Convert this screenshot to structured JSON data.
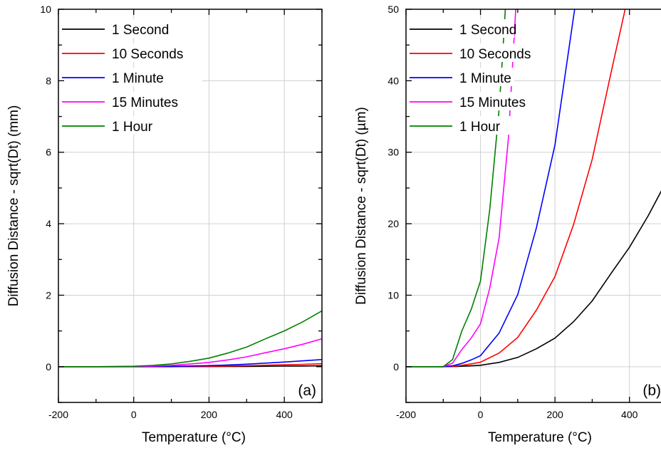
{
  "chart_data": [
    {
      "type": "line",
      "panel_label": "(a)",
      "xlabel": "Temperature (°C)",
      "ylabel": "Diffusion Distance - sqrt(Dt) (mm)",
      "xlim": [
        -200,
        500
      ],
      "ylim": [
        -1,
        10
      ],
      "xticks": [
        -200,
        0,
        200,
        400
      ],
      "yticks": [
        0,
        2,
        4,
        6,
        8,
        10
      ],
      "grid": true,
      "legend_position": "top-left",
      "series": [
        {
          "name": "1 Second",
          "color": "#000000",
          "x": [
            -200,
            -100,
            -50,
            0,
            50,
            100,
            150,
            200,
            250,
            300,
            350,
            400,
            450,
            500
          ],
          "y": [
            0,
            0,
            0,
            0.0002,
            0.0006,
            0.0013,
            0.0025,
            0.004,
            0.0063,
            0.0092,
            0.013,
            0.0167,
            0.0211,
            0.026
          ]
        },
        {
          "name": "10 Seconds",
          "color": "#ff0000",
          "x": [
            -200,
            -100,
            -50,
            0,
            50,
            100,
            150,
            200,
            250,
            300,
            350,
            400,
            450,
            500
          ],
          "y": [
            0,
            0,
            0.0003,
            0.0006,
            0.0019,
            0.0041,
            0.0079,
            0.0126,
            0.0199,
            0.029,
            0.041,
            0.0527,
            0.0668,
            0.082
          ]
        },
        {
          "name": "1 Minute",
          "color": "#0000ff",
          "x": [
            -200,
            -100,
            -50,
            0,
            50,
            100,
            150,
            200,
            250,
            300,
            350,
            400,
            450,
            500
          ],
          "y": [
            0,
            0,
            0.0006,
            0.0015,
            0.0047,
            0.0101,
            0.0194,
            0.031,
            0.049,
            0.071,
            0.1,
            0.129,
            0.164,
            0.2
          ]
        },
        {
          "name": "15 Minutes",
          "color": "#ff00ff",
          "x": [
            -200,
            -100,
            -50,
            0,
            50,
            100,
            150,
            200,
            250,
            300,
            350,
            400,
            450,
            500
          ],
          "y": [
            0,
            0.0003,
            0.0024,
            0.006,
            0.018,
            0.039,
            0.075,
            0.12,
            0.19,
            0.275,
            0.39,
            0.5,
            0.63,
            0.78
          ]
        },
        {
          "name": "1 Hour",
          "color": "#008000",
          "x": [
            -200,
            -100,
            -50,
            0,
            50,
            100,
            150,
            200,
            250,
            300,
            350,
            400,
            450,
            500
          ],
          "y": [
            0,
            0.0006,
            0.005,
            0.012,
            0.036,
            0.078,
            0.15,
            0.24,
            0.38,
            0.55,
            0.78,
            1.0,
            1.26,
            1.56
          ]
        }
      ]
    },
    {
      "type": "line",
      "panel_label": "(b)",
      "xlabel": "Temperature (°C)",
      "ylabel": "Diffusion Distance - sqrt(Dt) (µm)",
      "xlim": [
        -200,
        500
      ],
      "ylim": [
        -5,
        50
      ],
      "xticks": [
        -200,
        0,
        200,
        400
      ],
      "yticks": [
        0,
        10,
        20,
        30,
        40,
        50
      ],
      "grid": true,
      "legend_position": "top-left",
      "series": [
        {
          "name": "1 Second",
          "color": "#000000",
          "x": [
            -200,
            -150,
            -100,
            -75,
            -50,
            -25,
            0,
            50,
            100,
            150,
            200,
            250,
            300,
            350,
            400,
            450,
            500
          ],
          "y": [
            0,
            0,
            0,
            0.02,
            0.06,
            0.12,
            0.2,
            0.6,
            1.3,
            2.5,
            4.0,
            6.3,
            9.2,
            13.0,
            16.7,
            21.1,
            26.0
          ]
        },
        {
          "name": "10 Seconds",
          "color": "#ff0000",
          "x": [
            -200,
            -150,
            -100,
            -75,
            -50,
            -25,
            0,
            50,
            100,
            150,
            200,
            250,
            300,
            350,
            400,
            420
          ],
          "y": [
            0,
            0,
            0,
            0.05,
            0.19,
            0.39,
            0.63,
            1.9,
            4.1,
            7.9,
            12.6,
            19.9,
            29.0,
            41.0,
            52.7,
            58.0
          ]
        },
        {
          "name": "1 Minute",
          "color": "#0000ff",
          "x": [
            -200,
            -150,
            -100,
            -75,
            -50,
            -25,
            0,
            50,
            100,
            150,
            200,
            250,
            270
          ],
          "y": [
            0,
            0,
            0,
            0.12,
            0.46,
            0.95,
            1.55,
            4.7,
            10.1,
            19.4,
            31.0,
            49.0,
            56.0
          ]
        },
        {
          "name": "15 Minutes",
          "color": "#ff00ff",
          "x": [
            -200,
            -150,
            -100,
            -75,
            -50,
            -25,
            0,
            25,
            50,
            75,
            100
          ],
          "y": [
            0,
            0,
            0,
            0.5,
            2.4,
            4.0,
            6.0,
            11.0,
            18.0,
            32.0,
            55.0
          ]
        },
        {
          "name": "1 Hour",
          "color": "#008000",
          "x": [
            -200,
            -150,
            -100,
            -75,
            -50,
            -25,
            0,
            25,
            50,
            60,
            70
          ],
          "y": [
            0,
            0,
            0,
            1.0,
            5.0,
            8.0,
            12.0,
            22.0,
            36.0,
            44.0,
            53.0
          ]
        }
      ]
    }
  ]
}
